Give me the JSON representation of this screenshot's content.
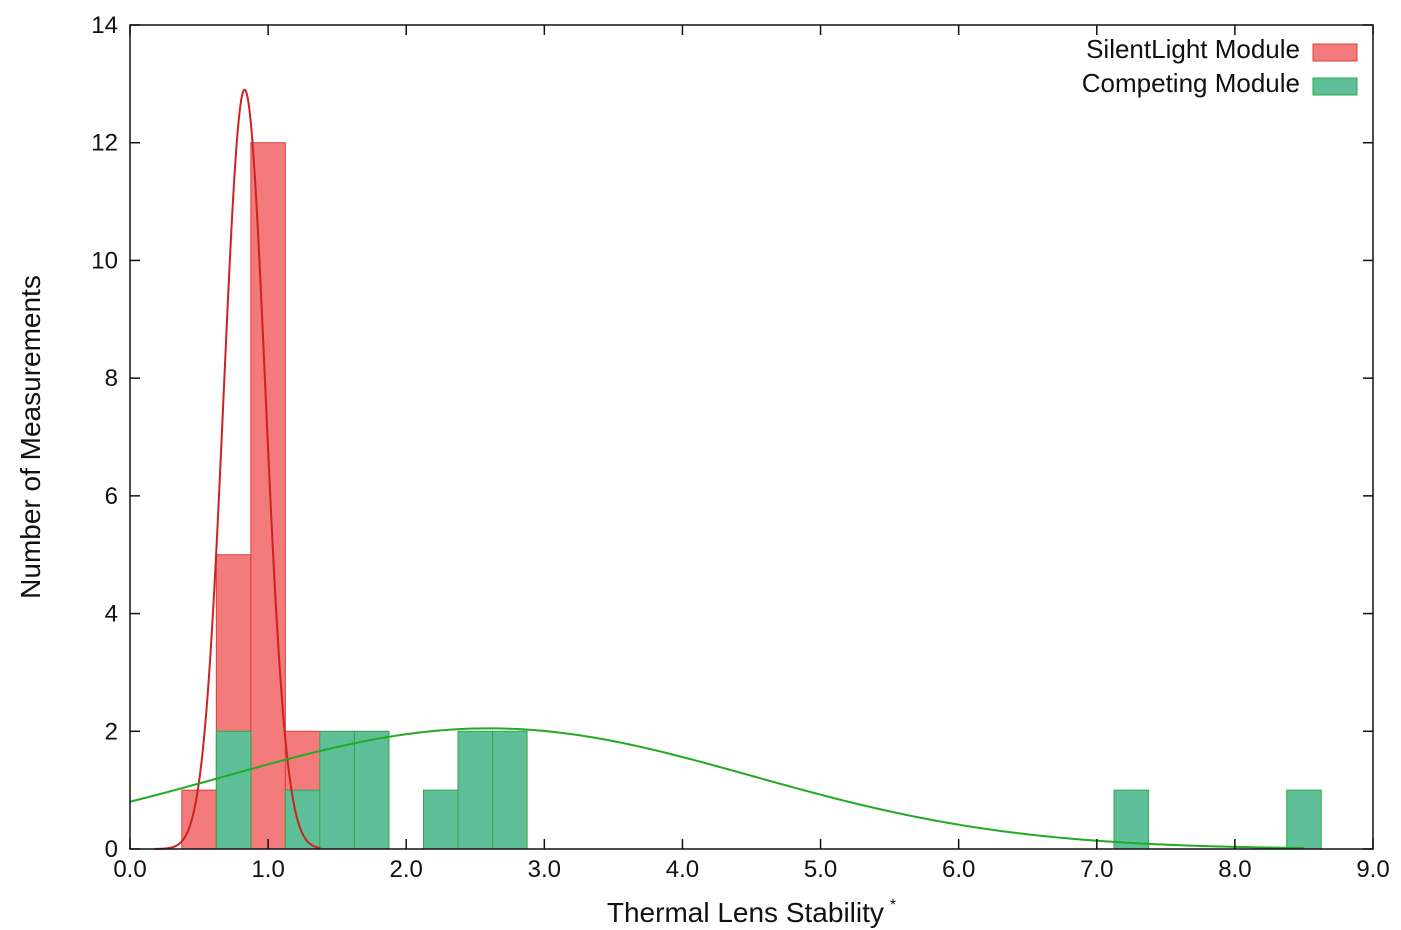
{
  "chart_data": {
    "type": "bar",
    "title": "",
    "xlabel": "Thermal Lens Stability",
    "xlabel_superscript": "*",
    "ylabel": "Number of Measurements",
    "xlim": [
      0.0,
      9.0
    ],
    "ylim": [
      0,
      14
    ],
    "x_ticks": [
      "0.0",
      "1.0",
      "2.0",
      "3.0",
      "4.0",
      "5.0",
      "6.0",
      "7.0",
      "8.0",
      "9.0"
    ],
    "y_ticks": [
      "0",
      "2",
      "4",
      "6",
      "8",
      "10",
      "12",
      "14"
    ],
    "grid": false,
    "legend_position": "top-right",
    "bin_width": 0.25,
    "series": [
      {
        "name": "SilentLight Module",
        "color": "#f47b7b",
        "edge_color": "#d94040",
        "bins": [
          {
            "start": 0.375,
            "count": 1
          },
          {
            "start": 0.625,
            "count": 5
          },
          {
            "start": 0.875,
            "count": 12
          },
          {
            "start": 1.125,
            "count": 2
          }
        ],
        "fit": {
          "type": "normal",
          "peak": 12.9,
          "mean": 0.83,
          "sd": 0.15,
          "color": "#cc2222",
          "x_range": [
            0.18,
            1.38
          ]
        }
      },
      {
        "name": "Competing Module",
        "color": "#5fbf98",
        "edge_color": "#2ea84a",
        "bins": [
          {
            "start": 0.625,
            "count": 2
          },
          {
            "start": 1.125,
            "count": 1
          },
          {
            "start": 1.375,
            "count": 2
          },
          {
            "start": 1.625,
            "count": 2
          },
          {
            "start": 2.125,
            "count": 1
          },
          {
            "start": 2.375,
            "count": 2
          },
          {
            "start": 2.625,
            "count": 2
          },
          {
            "start": 7.125,
            "count": 1
          },
          {
            "start": 8.375,
            "count": 1
          }
        ],
        "fit": {
          "type": "normal",
          "peak": 2.05,
          "mean": 2.6,
          "sd": 1.9,
          "color": "#22aa22",
          "x_range": [
            0.0,
            8.5
          ]
        }
      }
    ]
  }
}
